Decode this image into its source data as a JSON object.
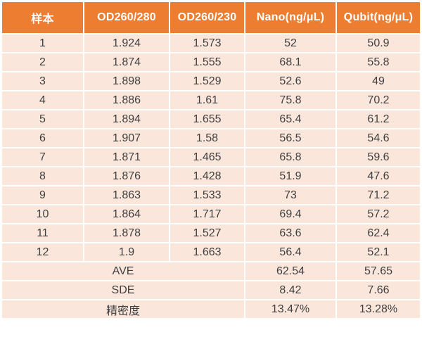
{
  "table": {
    "columns": [
      {
        "label": "样本"
      },
      {
        "label": "OD260/280"
      },
      {
        "label": "OD260/230"
      },
      {
        "label": "Nano(ng/μL)"
      },
      {
        "label": "Qubit(ng/μL)"
      }
    ],
    "rows": [
      [
        "1",
        "1.924",
        "1.573",
        "52",
        "50.9"
      ],
      [
        "2",
        "1.874",
        "1.555",
        "68.1",
        "55.8"
      ],
      [
        "3",
        "1.898",
        "1.529",
        "52.6",
        "49"
      ],
      [
        "4",
        "1.886",
        "1.61",
        "75.8",
        "70.2"
      ],
      [
        "5",
        "1.894",
        "1.655",
        "65.4",
        "61.2"
      ],
      [
        "6",
        "1.907",
        "1.58",
        "56.5",
        "54.6"
      ],
      [
        "7",
        "1.871",
        "1.465",
        "65.8",
        "59.6"
      ],
      [
        "8",
        "1.876",
        "1.428",
        "51.9",
        "47.6"
      ],
      [
        "9",
        "1.863",
        "1.533",
        "73",
        "71.2"
      ],
      [
        "10",
        "1.864",
        "1.717",
        "69.4",
        "57.2"
      ],
      [
        "11",
        "1.878",
        "1.527",
        "63.6",
        "62.4"
      ],
      [
        "12",
        "1.9",
        "1.663",
        "56.4",
        "52.1"
      ]
    ],
    "summary_rows": [
      {
        "label": "AVE",
        "values": [
          "62.54",
          "57.65"
        ]
      },
      {
        "label": "SDE",
        "values": [
          "8.42",
          "7.66"
        ]
      },
      {
        "label": "精密度",
        "values": [
          "13.47%",
          "13.28%"
        ]
      }
    ],
    "colors": {
      "header_bg": "#ED7D31",
      "header_text": "#FFFFFF",
      "row_bg": "#FBE6DC",
      "text": "#3F3F3F",
      "grid": "#FFFFFF"
    }
  }
}
